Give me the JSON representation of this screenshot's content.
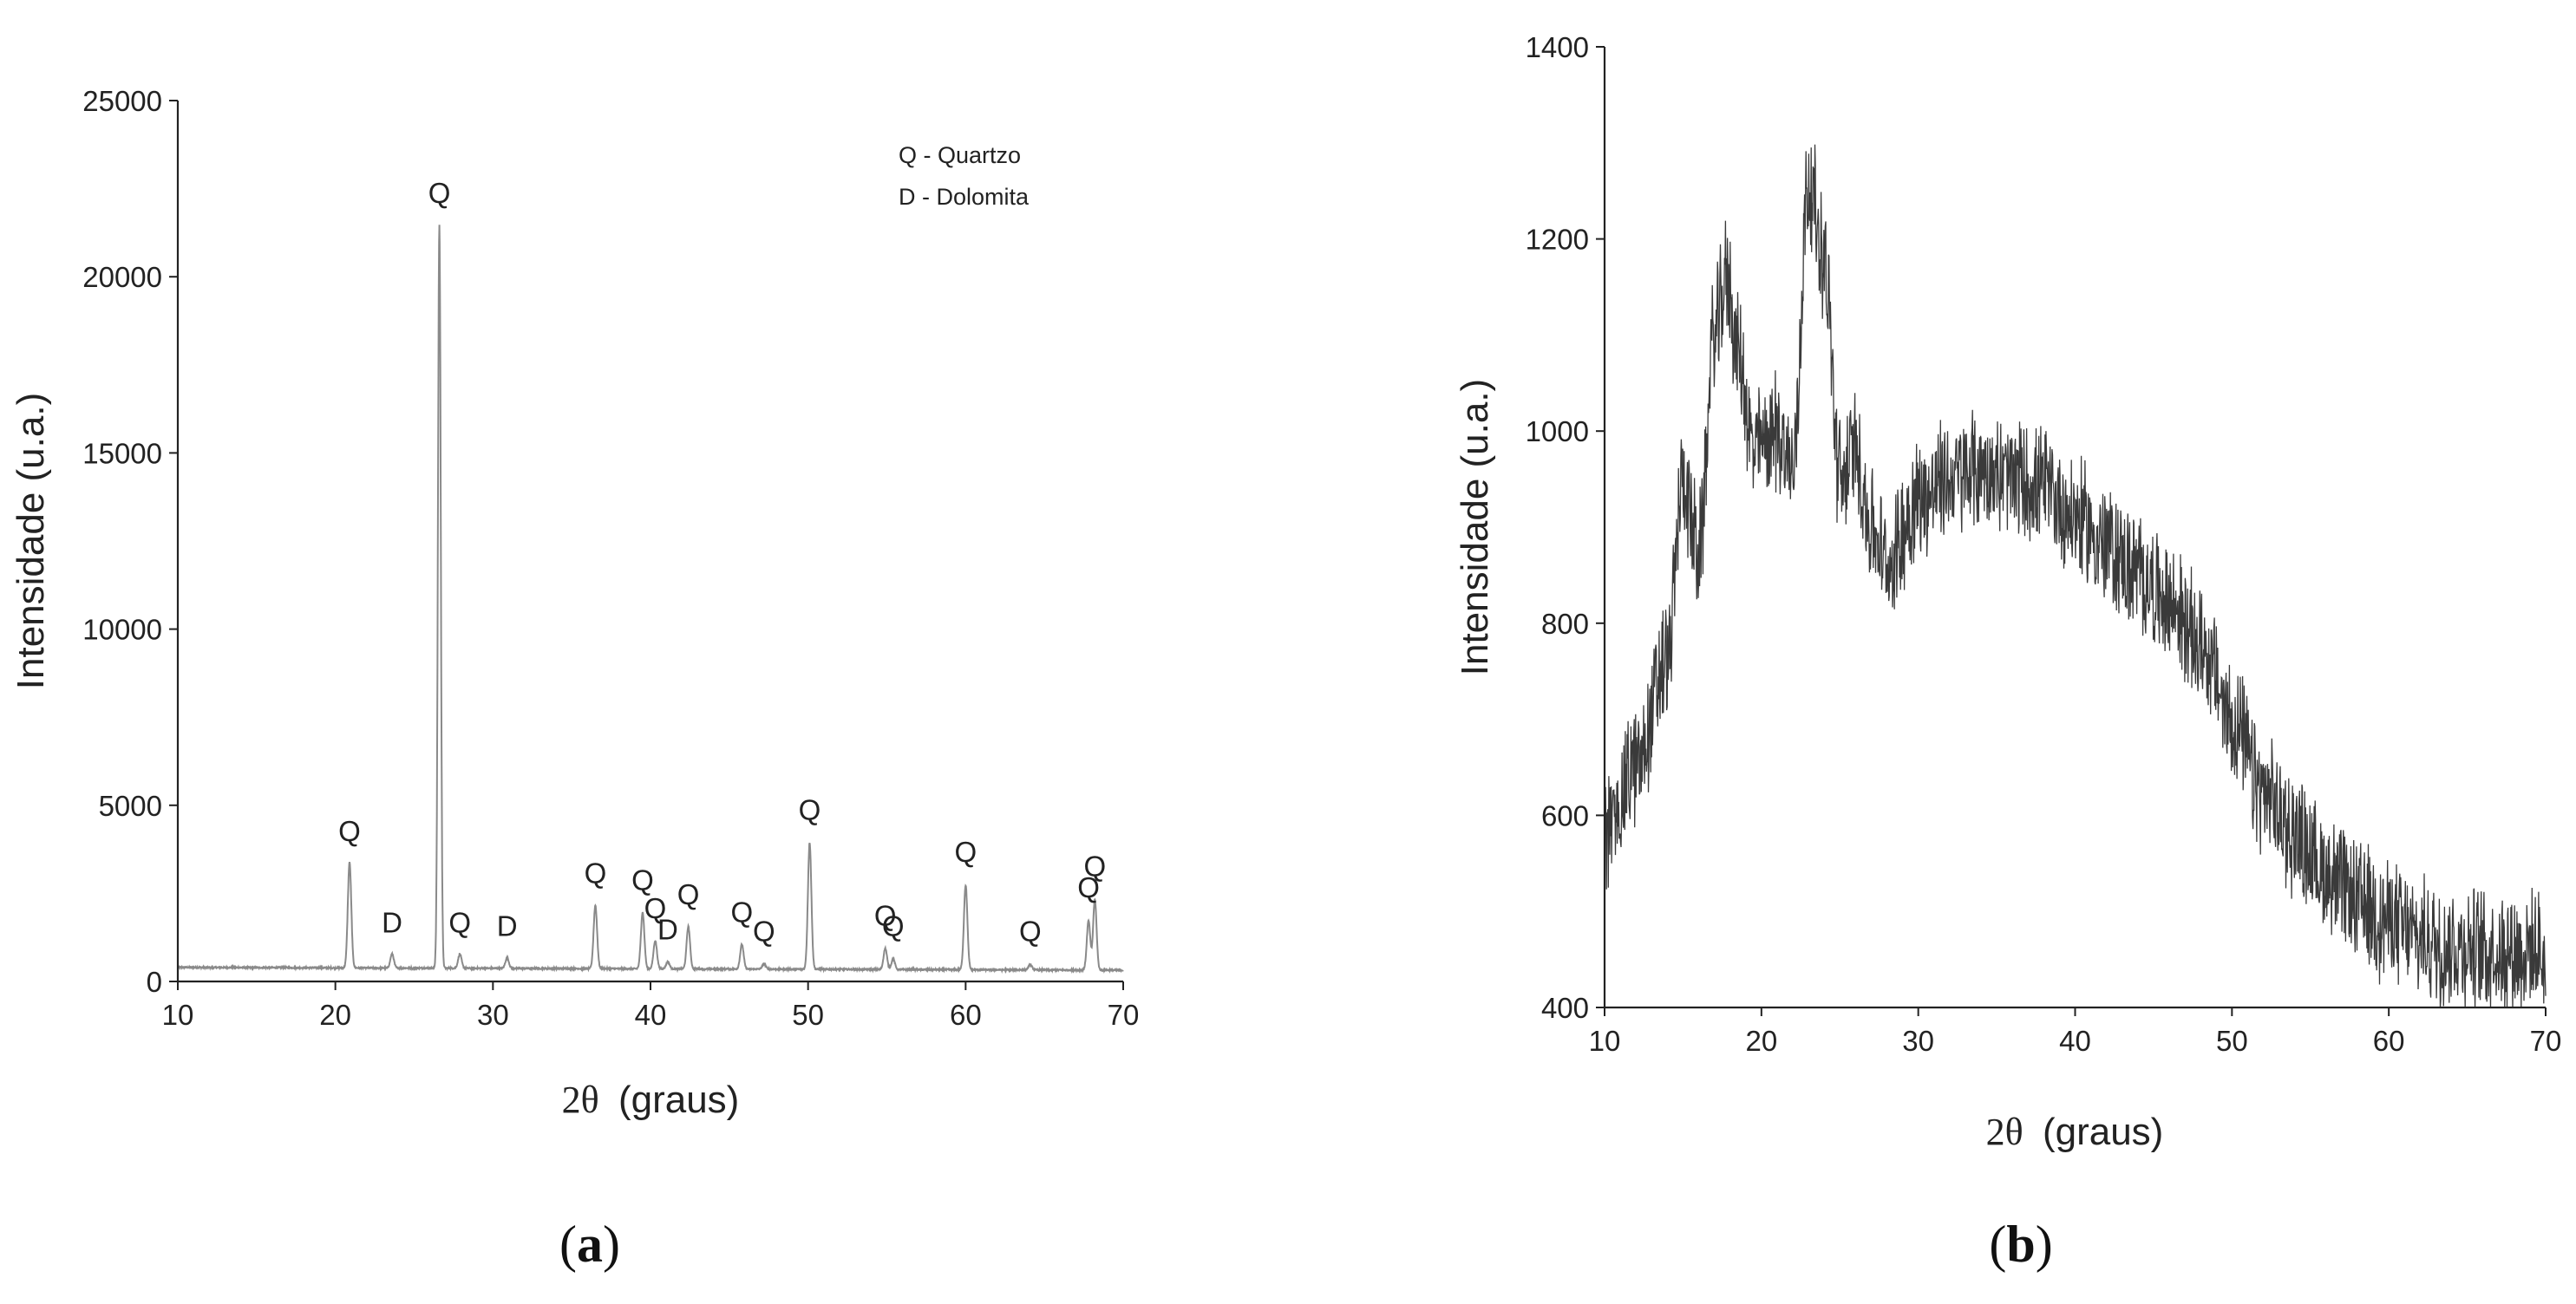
{
  "chart_data": [
    {
      "type": "line",
      "panel_label": "a",
      "xlabel_symbol": "2θ",
      "xlabel_unit": "(graus)",
      "ylabel": "Intensidade (u.a.)",
      "xlim": [
        10,
        70
      ],
      "ylim": [
        0,
        25000
      ],
      "xticks": [
        "10",
        "20",
        "30",
        "40",
        "50",
        "60",
        "70"
      ],
      "yticks": [
        "0",
        "5000",
        "10000",
        "15000",
        "20000",
        "25000"
      ],
      "line_color": "#8a8a8a",
      "legend": [
        "Q - Quartzo",
        "D - Dolomita"
      ],
      "legend_position": "top-right",
      "baseline": 400,
      "peaks": [
        {
          "x": 20.9,
          "y": 3400,
          "label": "Q"
        },
        {
          "x": 23.6,
          "y": 800,
          "label": "D"
        },
        {
          "x": 26.6,
          "y": 21500,
          "label": "Q"
        },
        {
          "x": 27.9,
          "y": 800,
          "label": "Q"
        },
        {
          "x": 30.9,
          "y": 700,
          "label": "D"
        },
        {
          "x": 36.5,
          "y": 2200,
          "label": "Q"
        },
        {
          "x": 39.5,
          "y": 2000,
          "label": "Q"
        },
        {
          "x": 40.3,
          "y": 1200,
          "label": "Q"
        },
        {
          "x": 41.1,
          "y": 600,
          "label": "D"
        },
        {
          "x": 42.4,
          "y": 1600,
          "label": "Q"
        },
        {
          "x": 45.8,
          "y": 1100,
          "label": "Q"
        },
        {
          "x": 47.2,
          "y": 550,
          "label": "Q"
        },
        {
          "x": 50.1,
          "y": 4000,
          "label": "Q"
        },
        {
          "x": 54.9,
          "y": 1000,
          "label": "Q"
        },
        {
          "x": 55.4,
          "y": 700,
          "label": "Q"
        },
        {
          "x": 60.0,
          "y": 2800,
          "label": "Q"
        },
        {
          "x": 64.1,
          "y": 550,
          "label": "Q"
        },
        {
          "x": 67.8,
          "y": 1800,
          "label": "Q"
        },
        {
          "x": 68.2,
          "y": 2400,
          "label": "Q"
        }
      ]
    },
    {
      "type": "line",
      "panel_label": "b",
      "xlabel_symbol": "2θ",
      "xlabel_unit": "(graus)",
      "ylabel": "Intensidade (u.a.)",
      "xlim": [
        10,
        70
      ],
      "ylim": [
        400,
        1400
      ],
      "xticks": [
        "10",
        "20",
        "30",
        "40",
        "50",
        "60",
        "70"
      ],
      "yticks": [
        "400",
        "600",
        "800",
        "1000",
        "1200",
        "1400"
      ],
      "line_color": "#3a3a3a",
      "noise_amplitude": 55,
      "envelope": {
        "x": [
          10,
          12,
          14,
          15,
          16,
          17,
          17.8,
          18.5,
          19.5,
          21,
          22,
          23,
          24,
          25,
          26,
          27,
          28,
          30,
          32,
          34,
          36,
          38,
          40,
          42,
          44,
          46,
          48,
          50,
          52,
          54,
          56,
          58,
          60,
          62,
          64,
          66,
          68,
          70
        ],
        "y": [
          580,
          650,
          760,
          950,
          870,
          1100,
          1160,
          1080,
          980,
          1000,
          960,
          1260,
          1180,
          950,
          980,
          900,
          860,
          930,
          950,
          960,
          950,
          940,
          910,
          880,
          850,
          820,
          780,
          700,
          620,
          580,
          540,
          510,
          490,
          470,
          465,
          460,
          460,
          455
        ]
      }
    }
  ]
}
